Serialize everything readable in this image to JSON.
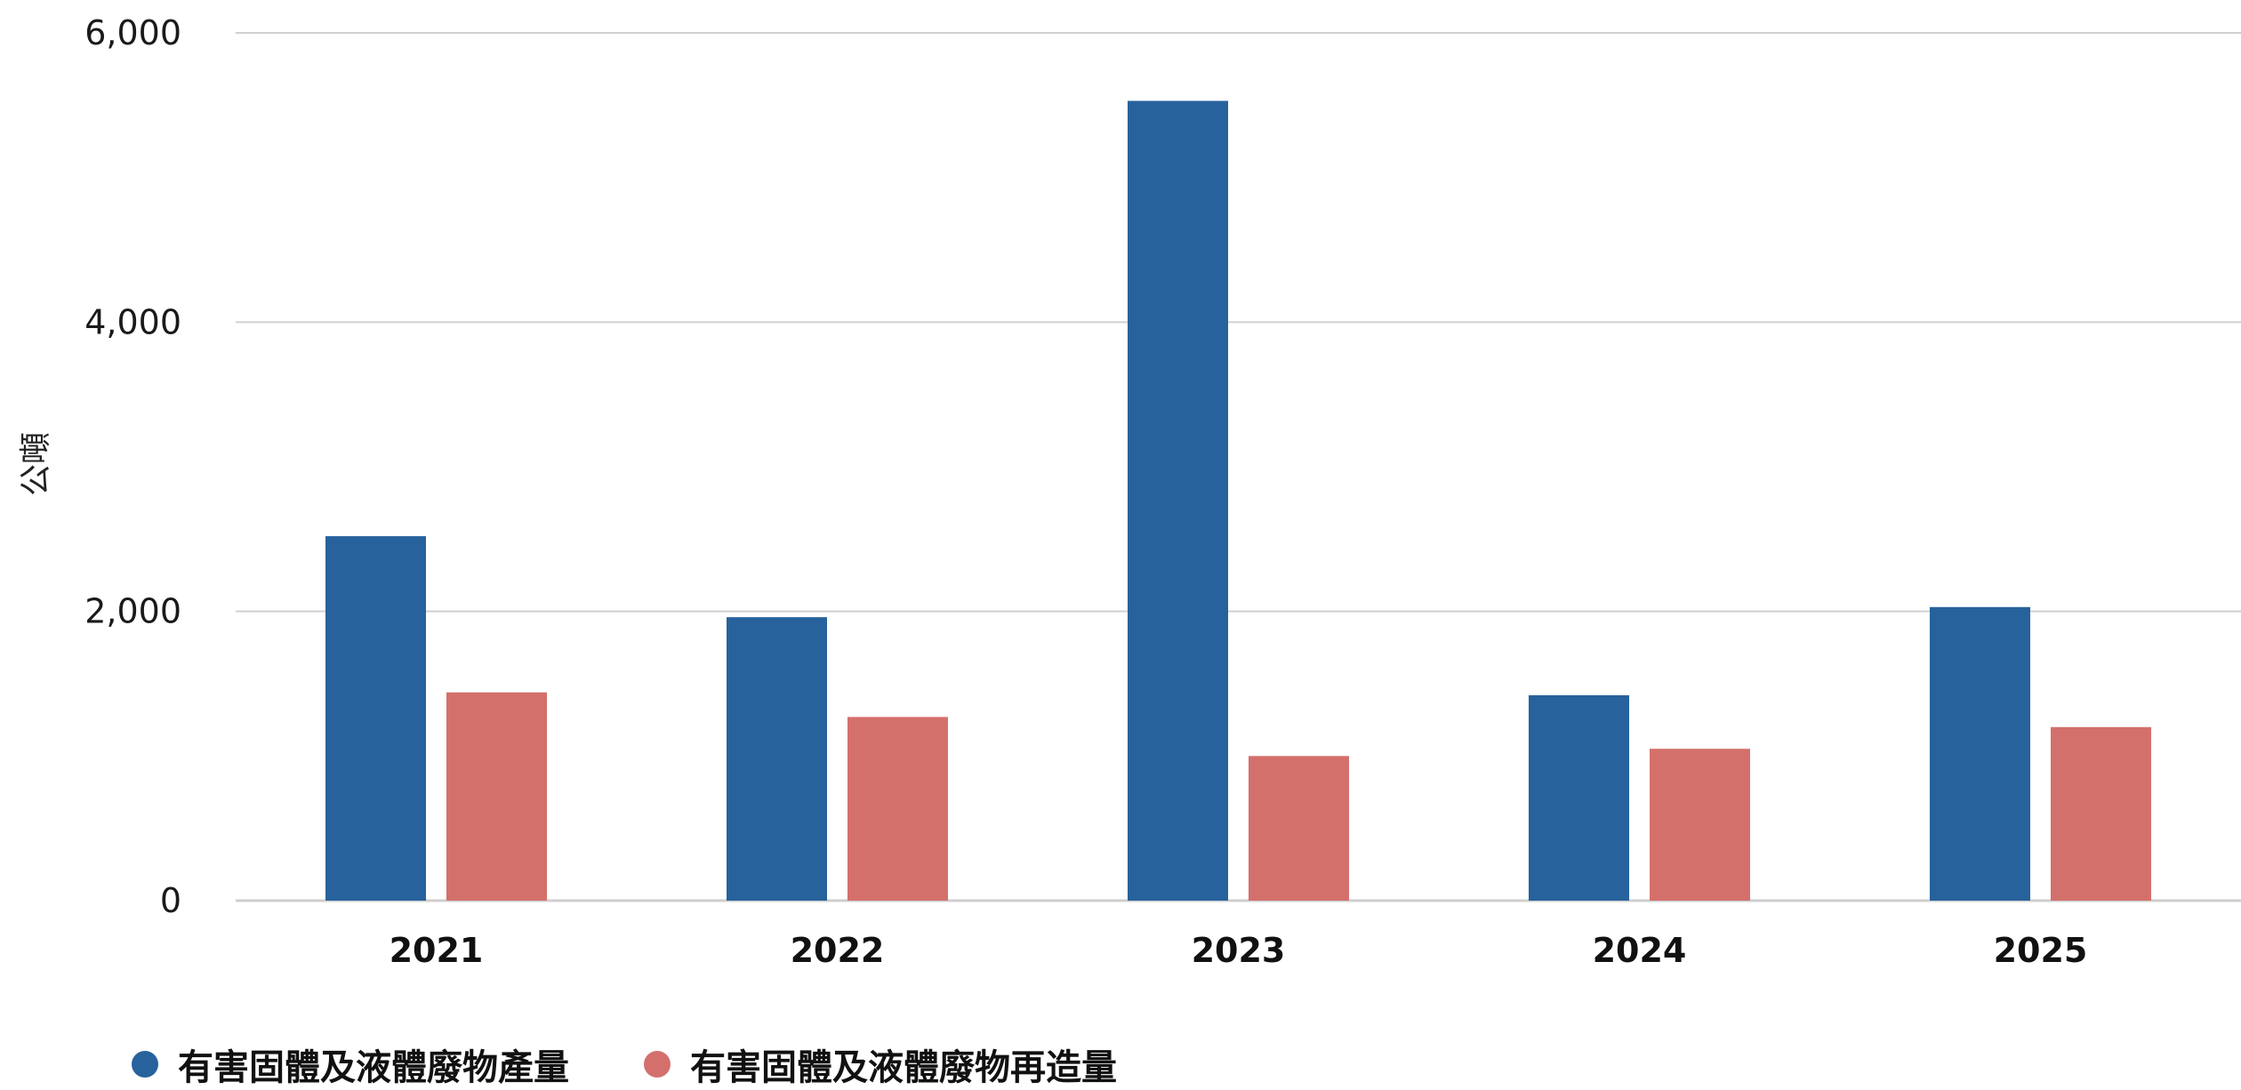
{
  "chart_data": {
    "type": "bar",
    "ylabel": "公噸",
    "ylim": [
      0,
      6000
    ],
    "yticks": [
      0,
      2000,
      4000,
      6000
    ],
    "ytick_labels": [
      "0",
      "2,000",
      "4,000",
      "6,000"
    ],
    "categories": [
      "2021",
      "2022",
      "2023",
      "2024",
      "2025"
    ],
    "grid": true,
    "legend_position": "bottom-left",
    "series": [
      {
        "name": "有害固體及液體廢物產量",
        "color": "#27629c",
        "values": [
          2520,
          1960,
          5530,
          1420,
          2030
        ]
      },
      {
        "name": "有害固體及液體廢物再造量",
        "color": "#d4706c",
        "values": [
          1440,
          1270,
          1000,
          1050,
          1200
        ]
      }
    ]
  }
}
